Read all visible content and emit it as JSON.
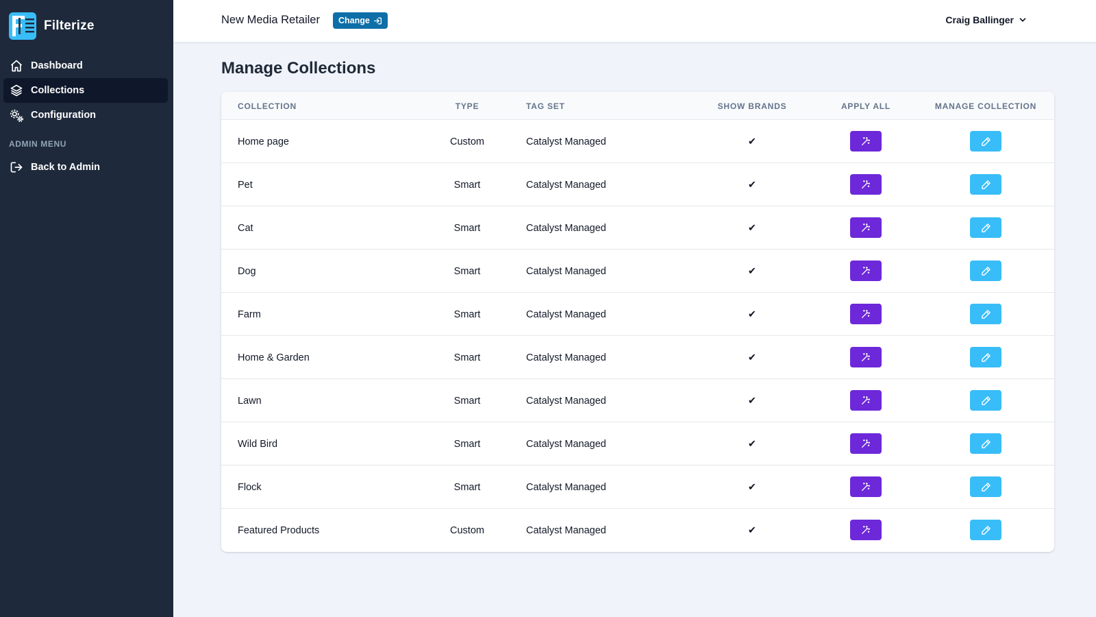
{
  "app": {
    "name": "Filterize"
  },
  "sidebar": {
    "items": [
      {
        "label": "Dashboard",
        "icon": "home-icon"
      },
      {
        "label": "Collections",
        "icon": "layers-icon",
        "active": true
      },
      {
        "label": "Configuration",
        "icon": "cogs-icon"
      }
    ],
    "admin_section_label": "ADMIN MENU",
    "admin_items": [
      {
        "label": "Back to Admin",
        "icon": "sign-out-icon"
      }
    ]
  },
  "header": {
    "store_name": "New Media Retailer",
    "change_label": "Change",
    "user_name": "Craig Ballinger"
  },
  "main": {
    "title": "Manage Collections",
    "table": {
      "columns": [
        "COLLECTION",
        "TYPE",
        "TAG SET",
        "SHOW BRANDS",
        "APPLY ALL",
        "MANAGE COLLECTION"
      ],
      "rows": [
        {
          "collection": "Home page",
          "type": "Custom",
          "tag_set": "Catalyst Managed",
          "show_brands": "✔"
        },
        {
          "collection": "Pet",
          "type": "Smart",
          "tag_set": "Catalyst Managed",
          "show_brands": "✔"
        },
        {
          "collection": "Cat",
          "type": "Smart",
          "tag_set": "Catalyst Managed",
          "show_brands": "✔"
        },
        {
          "collection": "Dog",
          "type": "Smart",
          "tag_set": "Catalyst Managed",
          "show_brands": "✔"
        },
        {
          "collection": "Farm",
          "type": "Smart",
          "tag_set": "Catalyst Managed",
          "show_brands": "✔"
        },
        {
          "collection": "Home & Garden",
          "type": "Smart",
          "tag_set": "Catalyst Managed",
          "show_brands": "✔"
        },
        {
          "collection": "Lawn",
          "type": "Smart",
          "tag_set": "Catalyst Managed",
          "show_brands": "✔"
        },
        {
          "collection": "Wild Bird",
          "type": "Smart",
          "tag_set": "Catalyst Managed",
          "show_brands": "✔"
        },
        {
          "collection": "Flock",
          "type": "Smart",
          "tag_set": "Catalyst Managed",
          "show_brands": "✔"
        },
        {
          "collection": "Featured Products",
          "type": "Custom",
          "tag_set": "Catalyst Managed",
          "show_brands": "✔"
        }
      ]
    }
  },
  "colors": {
    "sidebar_bg": "#1e293b",
    "active_item_bg": "#0f172a",
    "change_button": "#0d6ea8",
    "apply_button": "#6d28d9",
    "edit_button": "#38bdf8",
    "page_bg": "#f0f4fa"
  }
}
